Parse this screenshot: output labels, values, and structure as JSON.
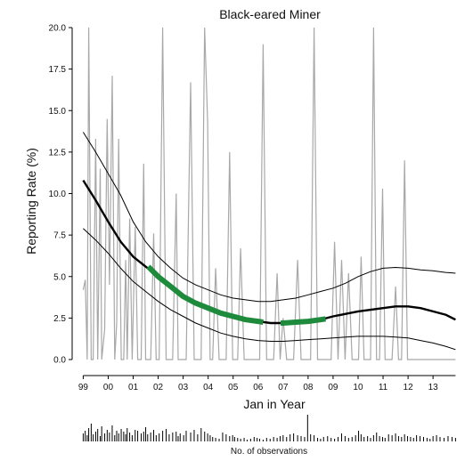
{
  "chart_data": {
    "type": "line",
    "title": "Black-eared Miner",
    "xlabel": "Jan in Year",
    "ylabel": "Reporting Rate (%)",
    "footer_label": "No. of observations",
    "ylim": [
      0,
      20
    ],
    "xlim": [
      1998.7,
      2014.1
    ],
    "yticks": [
      "0.0",
      "2.5",
      "5.0",
      "7.5",
      "10.0",
      "12.5",
      "15.0",
      "17.5",
      "20.0"
    ],
    "xticks": [
      "99",
      "00",
      "01",
      "02",
      "03",
      "04",
      "05",
      "06",
      "07",
      "08",
      "09",
      "10",
      "11",
      "12",
      "13"
    ],
    "colors": {
      "raw": "#a8a8a8",
      "trend": "#000000",
      "ci": "#000000",
      "highlight": "#1e8a3c",
      "axis": "#000000"
    },
    "series": [
      {
        "name": "",
        "kind": "raw_reporting_rate",
        "x": [
          1999.0,
          1999.08,
          1999.16,
          1999.22,
          1999.32,
          1999.4,
          1999.5,
          1999.58,
          1999.68,
          1999.74,
          1999.86,
          1999.96,
          2000.05,
          2000.16,
          2000.26,
          2000.34,
          2000.42,
          2000.52,
          2000.62,
          2000.7,
          2000.76,
          2000.86,
          2000.96,
          2001.08,
          2001.18,
          2001.32,
          2001.42,
          2001.5,
          2001.58,
          2001.7,
          2001.82,
          2001.92,
          2002.04,
          2002.18,
          2002.32,
          2002.44,
          2002.58,
          2002.72,
          2002.8,
          2002.88,
          2003.02,
          2003.12,
          2003.3,
          2003.44,
          2003.58,
          2003.72,
          2003.86,
          2003.98,
          2004.08,
          2004.18,
          2004.3,
          2004.44,
          2004.58,
          2004.72,
          2004.86,
          2004.98,
          2005.06,
          2005.18,
          2005.3,
          2005.44,
          2005.56,
          2005.7,
          2005.84,
          2005.96,
          2006.06,
          2006.2,
          2006.34,
          2006.48,
          2006.62,
          2006.76,
          2006.88,
          2007.0,
          2007.14,
          2007.28,
          2007.42,
          2007.58,
          2007.72,
          2007.86,
          2007.98,
          2008.1,
          2008.24,
          2008.38,
          2008.5,
          2008.62,
          2008.78,
          2008.92,
          2009.06,
          2009.2,
          2009.34,
          2009.48,
          2009.62,
          2009.76,
          2009.9,
          2010.02,
          2010.12,
          2010.24,
          2010.38,
          2010.5,
          2010.62,
          2010.74,
          2010.86,
          2010.98,
          2011.08,
          2011.22,
          2011.36,
          2011.5,
          2011.62,
          2011.74,
          2011.86,
          2011.98,
          2012.1,
          2012.22,
          2012.34,
          2012.48,
          2012.62,
          2012.76,
          2012.88,
          2013.0,
          2013.14,
          2013.28,
          2013.44,
          2013.6,
          2013.76,
          2013.9
        ],
        "values": [
          4.2,
          4.8,
          0.0,
          20.0,
          0.0,
          0.0,
          13.3,
          0.0,
          11.5,
          0.0,
          1.8,
          14.5,
          4.5,
          17.1,
          0.0,
          2.2,
          13.3,
          0.0,
          0.0,
          6.0,
          0.0,
          8.5,
          0.0,
          8.0,
          0.0,
          0.0,
          11.8,
          0.0,
          0.0,
          0.0,
          7.6,
          0.0,
          0.0,
          20.0,
          0.0,
          0.0,
          0.0,
          10.0,
          0.0,
          0.0,
          0.0,
          0.0,
          16.7,
          0.0,
          0.0,
          0.0,
          20.0,
          14.3,
          0.0,
          0.0,
          5.5,
          0.0,
          0.0,
          0.0,
          12.5,
          0.0,
          0.0,
          0.0,
          6.7,
          0.0,
          0.0,
          0.0,
          0.0,
          0.0,
          0.0,
          19.0,
          0.0,
          0.0,
          0.0,
          5.2,
          0.0,
          2.5,
          0.0,
          0.0,
          0.0,
          6.0,
          0.0,
          0.0,
          0.0,
          0.0,
          20.0,
          0.0,
          0.0,
          0.0,
          0.0,
          0.0,
          7.1,
          0.0,
          6.0,
          0.0,
          5.2,
          0.0,
          0.0,
          0.0,
          6.2,
          0.0,
          0.0,
          0.0,
          20.0,
          0.0,
          0.0,
          10.3,
          0.0,
          0.0,
          0.0,
          4.4,
          0.0,
          0.0,
          12.0,
          0.0,
          0.0,
          0.0,
          0.0,
          0.0,
          0.0,
          0.0,
          0.0,
          0.0,
          0.0,
          0.0,
          0.0,
          0.0,
          0.0,
          0.0
        ]
      },
      {
        "name": "",
        "kind": "trend",
        "x": [
          1999.0,
          1999.5,
          2000.0,
          2000.5,
          2001.0,
          2001.5,
          2002.0,
          2002.5,
          2003.0,
          2003.5,
          2004.0,
          2004.5,
          2005.0,
          2005.5,
          2006.0,
          2006.5,
          2007.0,
          2007.5,
          2008.0,
          2008.5,
          2009.0,
          2009.5,
          2010.0,
          2010.5,
          2011.0,
          2011.5,
          2012.0,
          2012.5,
          2013.0,
          2013.5,
          2013.9
        ],
        "values": [
          10.8,
          9.6,
          8.3,
          7.1,
          6.2,
          5.6,
          5.0,
          4.4,
          3.8,
          3.4,
          3.1,
          2.8,
          2.6,
          2.4,
          2.3,
          2.2,
          2.2,
          2.25,
          2.3,
          2.4,
          2.6,
          2.75,
          2.9,
          3.0,
          3.1,
          3.2,
          3.2,
          3.1,
          2.9,
          2.7,
          2.4
        ]
      },
      {
        "name": "",
        "kind": "ci_upper",
        "x": [
          1999.0,
          1999.5,
          2000.0,
          2000.5,
          2001.0,
          2001.5,
          2002.0,
          2002.5,
          2003.0,
          2003.5,
          2004.0,
          2004.5,
          2005.0,
          2005.5,
          2006.0,
          2006.5,
          2007.0,
          2007.5,
          2008.0,
          2008.5,
          2009.0,
          2009.5,
          2010.0,
          2010.5,
          2011.0,
          2011.5,
          2012.0,
          2012.5,
          2013.0,
          2013.5,
          2013.9
        ],
        "values": [
          13.7,
          12.5,
          11.2,
          9.9,
          8.3,
          7.1,
          6.2,
          5.5,
          4.9,
          4.5,
          4.2,
          3.9,
          3.7,
          3.6,
          3.5,
          3.5,
          3.6,
          3.7,
          3.9,
          4.1,
          4.3,
          4.6,
          5.0,
          5.3,
          5.5,
          5.55,
          5.5,
          5.4,
          5.35,
          5.25,
          5.2
        ]
      },
      {
        "name": "",
        "kind": "ci_lower",
        "x": [
          1999.0,
          1999.5,
          2000.0,
          2000.5,
          2001.0,
          2001.5,
          2002.0,
          2002.5,
          2003.0,
          2003.5,
          2004.0,
          2004.5,
          2005.0,
          2005.5,
          2006.0,
          2006.5,
          2007.0,
          2007.5,
          2008.0,
          2008.5,
          2009.0,
          2009.5,
          2010.0,
          2010.5,
          2011.0,
          2011.5,
          2012.0,
          2012.5,
          2013.0,
          2013.5,
          2013.9
        ],
        "values": [
          7.9,
          7.2,
          6.4,
          5.5,
          4.7,
          4.1,
          3.5,
          3.0,
          2.6,
          2.2,
          1.9,
          1.6,
          1.4,
          1.25,
          1.15,
          1.1,
          1.1,
          1.15,
          1.2,
          1.25,
          1.3,
          1.35,
          1.4,
          1.4,
          1.4,
          1.35,
          1.3,
          1.15,
          1.0,
          0.8,
          0.6
        ]
      },
      {
        "name": "",
        "kind": "highlight",
        "segments": [
          {
            "x": [
              2001.6,
              2002.0,
              2002.5,
              2003.0,
              2003.5,
              2004.0,
              2004.5,
              2005.0,
              2005.5,
              2006.0,
              2006.2
            ],
            "values": [
              5.6,
              5.0,
              4.4,
              3.8,
              3.4,
              3.1,
              2.8,
              2.6,
              2.4,
              2.3,
              2.25
            ]
          },
          {
            "x": [
              2006.9,
              2007.0,
              2007.5,
              2008.0,
              2008.5,
              2008.7
            ],
            "values": [
              2.2,
              2.2,
              2.25,
              2.3,
              2.4,
              2.45
            ]
          }
        ]
      }
    ],
    "observations": {
      "x": [
        1999.0,
        1999.08,
        1999.16,
        1999.22,
        1999.32,
        1999.4,
        1999.5,
        1999.58,
        1999.68,
        1999.74,
        1999.86,
        1999.96,
        2000.05,
        2000.16,
        2000.26,
        2000.34,
        2000.42,
        2000.52,
        2000.62,
        2000.7,
        2000.76,
        2000.86,
        2000.96,
        2001.08,
        2001.18,
        2001.32,
        2001.42,
        2001.5,
        2001.58,
        2001.7,
        2001.82,
        2001.92,
        2002.04,
        2002.18,
        2002.32,
        2002.44,
        2002.58,
        2002.72,
        2002.8,
        2002.88,
        2003.02,
        2003.12,
        2003.3,
        2003.44,
        2003.58,
        2003.72,
        2003.86,
        2003.98,
        2004.08,
        2004.18,
        2004.3,
        2004.44,
        2004.58,
        2004.72,
        2004.86,
        2004.98,
        2005.06,
        2005.18,
        2005.3,
        2005.44,
        2005.56,
        2005.7,
        2005.84,
        2005.96,
        2006.06,
        2006.2,
        2006.34,
        2006.48,
        2006.62,
        2006.76,
        2006.88,
        2007.0,
        2007.14,
        2007.28,
        2007.42,
        2007.58,
        2007.72,
        2007.86,
        2007.98,
        2008.1,
        2008.24,
        2008.38,
        2008.5,
        2008.62,
        2008.78,
        2008.92,
        2009.06,
        2009.2,
        2009.34,
        2009.48,
        2009.62,
        2009.76,
        2009.9,
        2010.02,
        2010.12,
        2010.24,
        2010.38,
        2010.5,
        2010.62,
        2010.74,
        2010.86,
        2010.98,
        2011.08,
        2011.22,
        2011.36,
        2011.5,
        2011.62,
        2011.74,
        2011.86,
        2011.98,
        2012.1,
        2012.22,
        2012.34,
        2012.48,
        2012.62,
        2012.76,
        2012.88,
        2013.0,
        2013.14,
        2013.28,
        2013.44,
        2013.6,
        2013.76,
        2013.9
      ],
      "counts": [
        9,
        12,
        7,
        15,
        20,
        8,
        11,
        14,
        6,
        17,
        9,
        13,
        10,
        18,
        7,
        12,
        9,
        14,
        11,
        8,
        15,
        10,
        7,
        13,
        12,
        9,
        11,
        16,
        8,
        10,
        13,
        7,
        9,
        12,
        14,
        8,
        10,
        11,
        6,
        9,
        7,
        12,
        10,
        13,
        8,
        15,
        11,
        9,
        7,
        5,
        4,
        3,
        10,
        8,
        6,
        7,
        5,
        4,
        3,
        4,
        2,
        3,
        5,
        4,
        3,
        2,
        4,
        3,
        5,
        4,
        6,
        7,
        5,
        8,
        9,
        7,
        6,
        5,
        30,
        8,
        7,
        4,
        3,
        5,
        6,
        4,
        3,
        5,
        9,
        6,
        4,
        5,
        7,
        12,
        8,
        5,
        6,
        4,
        7,
        10,
        6,
        5,
        4,
        8,
        7,
        9,
        6,
        5,
        8,
        6,
        5,
        4,
        7,
        6,
        5,
        4,
        3,
        6,
        7,
        5,
        4,
        6,
        5,
        4
      ]
    }
  }
}
